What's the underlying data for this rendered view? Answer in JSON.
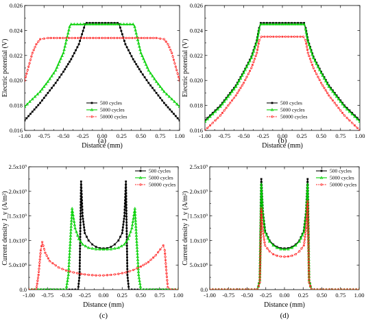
{
  "chart_data": [
    {
      "panel_label": "(a)",
      "type": "line",
      "xlabel": "Distance (mm)",
      "ylabel": "Electric potential (V)",
      "xlim": [
        -1.0,
        1.0
      ],
      "ylim": [
        0.016,
        0.026
      ],
      "xticks": [
        "-1.00",
        "-0.75",
        "-0.50",
        "-0.25",
        "0.00",
        "0.25",
        "0.50",
        "0.75",
        "1.00"
      ],
      "yticks": [
        "0.016",
        "0.018",
        "0.020",
        "0.022",
        "0.024",
        "0.026"
      ],
      "legend_position": "lower-center",
      "series": [
        {
          "name": "500 cycles",
          "color": "#000000",
          "marker": "square",
          "x": [
            -1.0,
            -0.9,
            -0.8,
            -0.7,
            -0.6,
            -0.5,
            -0.4,
            -0.3,
            -0.26,
            -0.22,
            -0.2,
            0,
            0.2,
            0.22,
            0.26,
            0.3,
            0.4,
            0.5,
            0.6,
            0.7,
            0.8,
            0.9,
            1.0
          ],
          "y": [
            0.0168,
            0.0175,
            0.0182,
            0.019,
            0.0198,
            0.0207,
            0.0217,
            0.0229,
            0.0237,
            0.0245,
            0.0246,
            0.0246,
            0.0246,
            0.0245,
            0.0237,
            0.0229,
            0.0217,
            0.0207,
            0.0198,
            0.019,
            0.0182,
            0.0175,
            0.0168
          ]
        },
        {
          "name": "5000 cycles",
          "color": "#00d000",
          "marker": "triangle",
          "x": [
            -1.0,
            -0.9,
            -0.8,
            -0.7,
            -0.6,
            -0.5,
            -0.45,
            -0.42,
            -0.4,
            0,
            0.4,
            0.42,
            0.45,
            0.5,
            0.6,
            0.7,
            0.8,
            0.9,
            1.0
          ],
          "y": [
            0.0179,
            0.0185,
            0.0191,
            0.0199,
            0.0208,
            0.0222,
            0.0235,
            0.0243,
            0.0245,
            0.0245,
            0.0245,
            0.0243,
            0.0235,
            0.0222,
            0.0208,
            0.0199,
            0.0191,
            0.0185,
            0.0179
          ]
        },
        {
          "name": "50000 cycles",
          "color": "#ff2020",
          "marker": "circle",
          "x": [
            -1.0,
            -0.95,
            -0.9,
            -0.85,
            -0.8,
            -0.7,
            0,
            0.7,
            0.8,
            0.85,
            0.9,
            0.95,
            1.0
          ],
          "y": [
            0.02,
            0.0211,
            0.0222,
            0.0229,
            0.0233,
            0.0234,
            0.0234,
            0.0234,
            0.0233,
            0.0229,
            0.0222,
            0.0211,
            0.02
          ]
        }
      ]
    },
    {
      "panel_label": "(b)",
      "type": "line",
      "xlabel": "Distance (mm)",
      "ylabel": "Electric potential (V)",
      "xlim": [
        -1.0,
        1.0
      ],
      "ylim": [
        0.016,
        0.026
      ],
      "xticks": [
        "-1.00",
        "-0.75",
        "-0.50",
        "-0.25",
        "0.00",
        "0.25",
        "0.50",
        "0.75",
        "1.00"
      ],
      "yticks": [
        "0.016",
        "0.018",
        "0.020",
        "0.022",
        "0.024",
        "0.026"
      ],
      "legend_position": "lower-right",
      "series": [
        {
          "name": "500 cycles",
          "color": "#000000",
          "marker": "square",
          "x": [
            -1.0,
            -0.9,
            -0.8,
            -0.7,
            -0.6,
            -0.5,
            -0.4,
            -0.33,
            -0.3,
            -0.28,
            0,
            0.28,
            0.3,
            0.33,
            0.4,
            0.5,
            0.6,
            0.7,
            0.8,
            0.9,
            1.0
          ],
          "y": [
            0.0168,
            0.0174,
            0.018,
            0.0188,
            0.0196,
            0.0207,
            0.0219,
            0.0232,
            0.0242,
            0.0246,
            0.0246,
            0.0246,
            0.0242,
            0.0232,
            0.0219,
            0.0207,
            0.0196,
            0.0188,
            0.018,
            0.0174,
            0.0168
          ]
        },
        {
          "name": "5000 cycles",
          "color": "#00d000",
          "marker": "triangle",
          "x": [
            -1.0,
            -0.9,
            -0.8,
            -0.7,
            -0.6,
            -0.5,
            -0.4,
            -0.33,
            -0.3,
            -0.28,
            0,
            0.28,
            0.3,
            0.33,
            0.4,
            0.5,
            0.6,
            0.7,
            0.8,
            0.9,
            1.0
          ],
          "y": [
            0.0167,
            0.0173,
            0.0179,
            0.0187,
            0.0195,
            0.0206,
            0.0218,
            0.0231,
            0.0241,
            0.0245,
            0.0245,
            0.0245,
            0.0241,
            0.0231,
            0.0218,
            0.0206,
            0.0195,
            0.0187,
            0.0179,
            0.0173,
            0.0167
          ]
        },
        {
          "name": "50000 cycles",
          "color": "#ff2020",
          "marker": "circle",
          "x": [
            -1.0,
            -0.9,
            -0.8,
            -0.7,
            -0.6,
            -0.5,
            -0.4,
            -0.33,
            -0.3,
            -0.27,
            0,
            0.27,
            0.3,
            0.33,
            0.4,
            0.5,
            0.6,
            0.7,
            0.8,
            0.9,
            1.0
          ],
          "y": [
            0.016,
            0.0166,
            0.0172,
            0.018,
            0.0188,
            0.0198,
            0.021,
            0.0222,
            0.0232,
            0.0235,
            0.0235,
            0.0235,
            0.0232,
            0.0222,
            0.021,
            0.0198,
            0.0188,
            0.018,
            0.0172,
            0.0166,
            0.016
          ]
        }
      ]
    },
    {
      "panel_label": "(c)",
      "type": "line",
      "xlabel": "Distance (mm)",
      "ylabel": "Current density J_y (A/m²)",
      "xlim": [
        -1.0,
        1.0
      ],
      "ylim": [
        0,
        2500000000
      ],
      "xticks": [
        "-1.00",
        "-0.75",
        "-0.50",
        "-0.25",
        "0.00",
        "0.25",
        "0.50",
        "0.75",
        "1.00"
      ],
      "yticks": [
        "0.0",
        "5.0x10⁸",
        "1.0x10⁹",
        "1.5x10⁹",
        "2.0x10⁹",
        "2.5x10⁹"
      ],
      "legend_position": "top-right",
      "series": [
        {
          "name": "500 cycles",
          "color": "#000000",
          "marker": "square",
          "x": [
            -1.0,
            -0.34,
            -0.32,
            -0.3,
            -0.28,
            -0.25,
            -0.2,
            -0.15,
            -0.1,
            -0.05,
            0,
            0.05,
            0.1,
            0.15,
            0.2,
            0.25,
            0.28,
            0.3,
            0.32,
            0.34,
            1.0
          ],
          "y": [
            0,
            0,
            300000000,
            2200000000,
            1500000000,
            1150000000,
            1000000000,
            920000000,
            870000000,
            845000000,
            840000000,
            845000000,
            870000000,
            920000000,
            1000000000,
            1150000000,
            1500000000,
            2200000000,
            300000000,
            0,
            0
          ]
        },
        {
          "name": "5000 cycles",
          "color": "#00d000",
          "marker": "triangle",
          "x": [
            -1.0,
            -0.5,
            -0.47,
            -0.44,
            -0.42,
            -0.38,
            -0.33,
            -0.28,
            -0.2,
            -0.1,
            0,
            0.1,
            0.2,
            0.28,
            0.33,
            0.38,
            0.42,
            0.44,
            0.47,
            0.5,
            1.0
          ],
          "y": [
            0,
            0,
            300000000,
            1100000000,
            1650000000,
            1250000000,
            1030000000,
            920000000,
            850000000,
            825000000,
            820000000,
            825000000,
            850000000,
            920000000,
            1030000000,
            1250000000,
            1650000000,
            1100000000,
            300000000,
            0,
            0
          ]
        },
        {
          "name": "50000 cycles",
          "color": "#ff2020",
          "marker": "circle",
          "x": [
            -1.0,
            -0.9,
            -0.87,
            -0.84,
            -0.82,
            -0.78,
            -0.72,
            -0.6,
            -0.5,
            -0.4,
            -0.3,
            -0.2,
            -0.1,
            0,
            0.1,
            0.2,
            0.3,
            0.4,
            0.5,
            0.6,
            0.7,
            0.76,
            0.8,
            0.82,
            0.84,
            0.86,
            0.9,
            1.0
          ],
          "y": [
            0,
            0,
            300000000,
            800000000,
            970000000,
            750000000,
            580000000,
            450000000,
            390000000,
            350000000,
            320000000,
            300000000,
            290000000,
            290000000,
            300000000,
            320000000,
            350000000,
            400000000,
            470000000,
            560000000,
            700000000,
            820000000,
            900000000,
            800000000,
            400000000,
            50000000,
            0,
            0
          ]
        }
      ]
    },
    {
      "panel_label": "(d)",
      "type": "line",
      "xlabel": "Distance (mm)",
      "ylabel": "Current density J_y (A/m²)",
      "xlim": [
        -1.0,
        1.0
      ],
      "ylim": [
        0,
        2500000000
      ],
      "xticks": [
        "-1.00",
        "-0.75",
        "-0.50",
        "-0.25",
        "0.00",
        "0.25",
        "0.50",
        "0.75",
        "1.00"
      ],
      "yticks": [
        "0.0",
        "5.0x10⁸",
        "1.0x10⁹",
        "1.5x10⁹",
        "2.0x10⁹",
        "2.5x10⁹"
      ],
      "legend_position": "top-right",
      "series": [
        {
          "name": "500 cycles",
          "color": "#000000",
          "marker": "square",
          "x": [
            -1.0,
            -0.36,
            -0.33,
            -0.31,
            -0.29,
            -0.26,
            -0.2,
            -0.15,
            -0.1,
            -0.05,
            0,
            0.05,
            0.1,
            0.15,
            0.2,
            0.26,
            0.29,
            0.31,
            0.33,
            0.36,
            1.0
          ],
          "y": [
            0,
            0,
            200000000,
            2250000000,
            1600000000,
            1200000000,
            1000000000,
            920000000,
            870000000,
            845000000,
            840000000,
            845000000,
            870000000,
            920000000,
            1000000000,
            1200000000,
            1600000000,
            2250000000,
            200000000,
            0,
            0
          ]
        },
        {
          "name": "5000 cycles",
          "color": "#00d000",
          "marker": "triangle",
          "x": [
            -1.0,
            -0.36,
            -0.33,
            -0.31,
            -0.29,
            -0.26,
            -0.2,
            -0.15,
            -0.1,
            -0.05,
            0,
            0.05,
            0.1,
            0.15,
            0.2,
            0.26,
            0.29,
            0.31,
            0.33,
            0.36,
            1.0
          ],
          "y": [
            0,
            0,
            200000000,
            2150000000,
            1550000000,
            1170000000,
            980000000,
            900000000,
            850000000,
            825000000,
            820000000,
            825000000,
            850000000,
            900000000,
            980000000,
            1170000000,
            1550000000,
            2150000000,
            200000000,
            0,
            0
          ]
        },
        {
          "name": "50000 cycles",
          "color": "#ff2020",
          "marker": "circle",
          "x": [
            -1.0,
            -0.36,
            -0.33,
            -0.31,
            -0.29,
            -0.26,
            -0.2,
            -0.15,
            -0.1,
            -0.05,
            0,
            0.05,
            0.1,
            0.15,
            0.2,
            0.26,
            0.29,
            0.31,
            0.33,
            0.36,
            1.0
          ],
          "y": [
            0,
            0,
            150000000,
            1650000000,
            1200000000,
            900000000,
            780000000,
            720000000,
            690000000,
            675000000,
            670000000,
            675000000,
            690000000,
            720000000,
            780000000,
            900000000,
            1250000000,
            1800000000,
            150000000,
            0,
            0
          ]
        }
      ]
    }
  ]
}
